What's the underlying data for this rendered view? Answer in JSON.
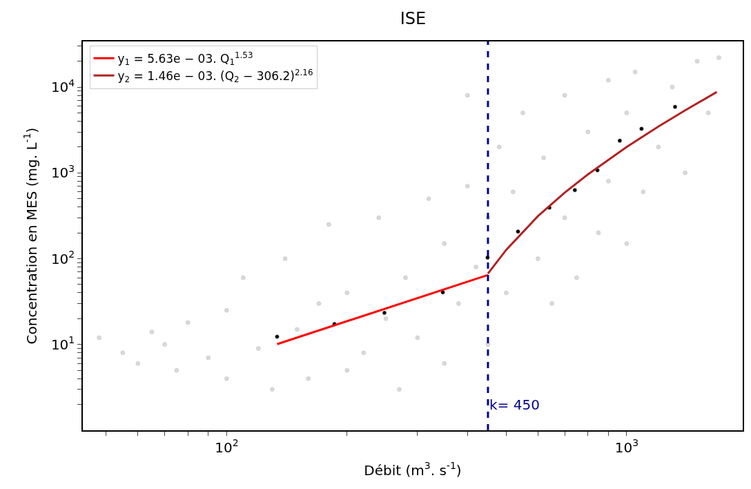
{
  "chart_data": {
    "type": "scatter",
    "title": "ISE",
    "xlabel": "Débit (m$^{3}$. s$^{-1}$)",
    "ylabel": "Concentration en MES (mg. L$^{-1}$)",
    "log": "xy",
    "legend": "top left",
    "xlim": [
      43.7,
      1950
    ],
    "ylim": [
      1,
      34000
    ],
    "xticks": [
      {
        "value": 50,
        "label": null
      },
      {
        "value": 60,
        "label": null
      },
      {
        "value": 70,
        "label": null
      },
      {
        "value": 80,
        "label": null
      },
      {
        "value": 90,
        "label": null
      },
      {
        "value": 100,
        "label": "10$^{2}$"
      },
      {
        "value": 200,
        "label": null
      },
      {
        "value": 300,
        "label": null
      },
      {
        "value": 400,
        "label": null
      },
      {
        "value": 500,
        "label": null
      },
      {
        "value": 600,
        "label": null
      },
      {
        "value": 700,
        "label": null
      },
      {
        "value": 800,
        "label": null
      },
      {
        "value": 900,
        "label": null
      },
      {
        "value": 1000,
        "label": "10$^{3}$"
      }
    ],
    "yticks": [
      {
        "value": 2,
        "label": null
      },
      {
        "value": 3,
        "label": null
      },
      {
        "value": 4,
        "label": null
      },
      {
        "value": 5,
        "label": null
      },
      {
        "value": 6,
        "label": null
      },
      {
        "value": 7,
        "label": null
      },
      {
        "value": 8,
        "label": null
      },
      {
        "value": 9,
        "label": null
      },
      {
        "value": 10,
        "label": "10$^{1}$"
      },
      {
        "value": 20,
        "label": null
      },
      {
        "value": 30,
        "label": null
      },
      {
        "value": 40,
        "label": null
      },
      {
        "value": 50,
        "label": null
      },
      {
        "value": 60,
        "label": null
      },
      {
        "value": 70,
        "label": null
      },
      {
        "value": 80,
        "label": null
      },
      {
        "value": 90,
        "label": null
      },
      {
        "value": 100,
        "label": "10$^{2}$"
      },
      {
        "value": 200,
        "label": null
      },
      {
        "value": 300,
        "label": null
      },
      {
        "value": 400,
        "label": null
      },
      {
        "value": 500,
        "label": null
      },
      {
        "value": 600,
        "label": null
      },
      {
        "value": 700,
        "label": null
      },
      {
        "value": 800,
        "label": null
      },
      {
        "value": 900,
        "label": null
      },
      {
        "value": 1000,
        "label": "10$^{3}$"
      },
      {
        "value": 2000,
        "label": null
      },
      {
        "value": 3000,
        "label": null
      },
      {
        "value": 4000,
        "label": null
      },
      {
        "value": 5000,
        "label": null
      },
      {
        "value": 6000,
        "label": null
      },
      {
        "value": 7000,
        "label": null
      },
      {
        "value": 8000,
        "label": null
      },
      {
        "value": 9000,
        "label": null
      },
      {
        "value": 10000,
        "label": "10$^{4}$"
      },
      {
        "value": 20000,
        "label": null
      },
      {
        "value": 30000,
        "label": null
      }
    ],
    "series": [
      {
        "marker": "circle",
        "color": "#c0c0c0",
        "x": [
          48,
          55,
          60,
          65,
          70,
          75,
          80,
          90,
          100,
          100,
          110,
          120,
          130,
          140,
          150,
          160,
          170,
          180,
          200,
          200,
          220,
          240,
          250,
          270,
          280,
          300,
          320,
          350,
          350,
          380,
          400,
          400,
          420,
          450,
          450,
          480,
          500,
          520,
          550,
          600,
          620,
          650,
          700,
          700,
          750,
          800,
          850,
          900,
          900,
          1000,
          1000,
          1050,
          1100,
          1200,
          1300,
          1400,
          1500,
          1600,
          1700
        ],
        "values": [
          12,
          8,
          6,
          14,
          10,
          5,
          18,
          7,
          4,
          25,
          60,
          9,
          3,
          100,
          15,
          4,
          30,
          250,
          5,
          40,
          8,
          300,
          20,
          3,
          60,
          12,
          500,
          6,
          150,
          30,
          8000,
          700,
          80,
          10,
          300,
          2000,
          40,
          600,
          5000,
          100,
          1500,
          30,
          8000,
          300,
          60,
          3000,
          200,
          12000,
          800,
          150,
          5000,
          15000,
          600,
          2000,
          10000,
          1000,
          20000,
          5000,
          22000
        ]
      },
      {
        "marker": "circle",
        "color": "#000000",
        "x": [
          133.7,
          186,
          248,
          347,
          449,
          535,
          641,
          742,
          845,
          961,
          1089,
          1321
        ],
        "values": [
          12.3,
          17.3,
          23.4,
          40.6,
          103,
          207,
          393,
          630,
          1071,
          2373,
          3266,
          5878
        ]
      },
      {
        "type": "line",
        "marker": "none",
        "name": "y$_{1}$ = 5.63e − 03. Q$_{1}$$^{1.53}$",
        "color": "#ff0000",
        "x": [
          133.7,
          450
        ],
        "values": [
          10.1,
          64.6
        ]
      },
      {
        "type": "line",
        "marker": "none",
        "name": "y$_{2}$ = 1.46e − 03. (Q$_{2}$ − 306.2)$^{2.16}$",
        "color": "#b22222",
        "x": [
          450,
          500,
          600,
          700,
          800,
          1000,
          1200,
          1400,
          1680
        ],
        "values": [
          66.9,
          127,
          313,
          589,
          960,
          2002,
          3463,
          5351,
          8767
        ]
      }
    ],
    "ref_lines": [
      {
        "axis": "x",
        "value": 450,
        "label": "k= 450",
        "color": "#00008b",
        "line_style": "dashed"
      }
    ]
  }
}
